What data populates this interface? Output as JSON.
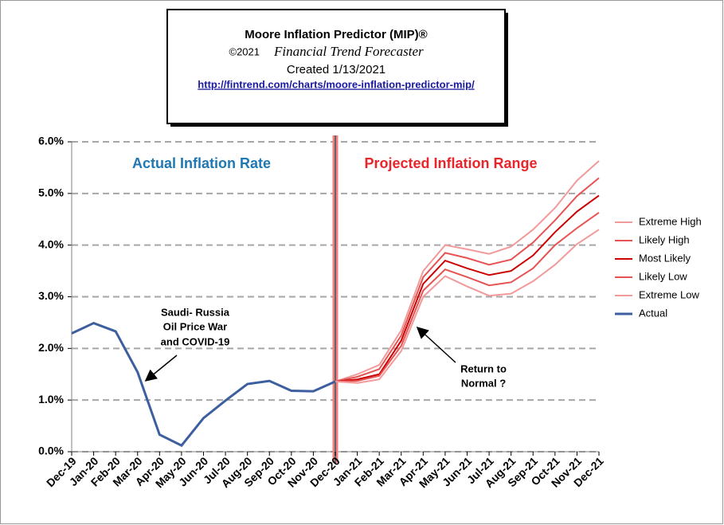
{
  "chart_data": {
    "type": "line",
    "title": "Moore Inflation Predictor (MIP)®",
    "subtitle_prefix": "©2021",
    "subtitle": "Financial Trend Forecaster",
    "created": "Created  1/13/2021",
    "link": "http://fintrend.com/charts/moore-inflation-predictor-mip/",
    "annotations": [
      {
        "lines": [
          "Actual Inflation Rate"
        ]
      },
      {
        "lines": [
          "Projected Inflation Range"
        ]
      },
      {
        "lines": [
          "Saudi- Russia",
          "Oil Price War",
          "and COVID-19"
        ]
      },
      {
        "lines": [
          "Return to",
          "Normal ?"
        ]
      }
    ],
    "categories": [
      "Dec-19",
      "Jan-20",
      "Feb-20",
      "Mar-20",
      "Apr-20",
      "May-20",
      "Jun-20",
      "Jul-20",
      "Aug-20",
      "Sep-20",
      "Oct-20",
      "Nov-20",
      "Dec-20",
      "Jan-21",
      "Feb-21",
      "Mar-21",
      "Apr-21",
      "May-21",
      "Jun-21",
      "Jul-21",
      "Aug-21",
      "Sep-21",
      "Oct-21",
      "Nov-21",
      "Dec-21"
    ],
    "series": [
      {
        "name": "Extreme High",
        "color": "#f29a9a",
        "values": [
          null,
          null,
          null,
          null,
          null,
          null,
          null,
          null,
          null,
          null,
          null,
          null,
          1.36,
          1.5,
          1.68,
          2.35,
          3.5,
          4.0,
          3.92,
          3.83,
          3.97,
          4.3,
          4.72,
          5.25,
          5.63
        ]
      },
      {
        "name": "Likely High",
        "color": "#e65353",
        "values": [
          null,
          null,
          null,
          null,
          null,
          null,
          null,
          null,
          null,
          null,
          null,
          null,
          1.36,
          1.45,
          1.6,
          2.25,
          3.38,
          3.85,
          3.75,
          3.62,
          3.72,
          4.05,
          4.48,
          4.95,
          5.3
        ]
      },
      {
        "name": "Most Likely",
        "color": "#cc0000",
        "values": [
          null,
          null,
          null,
          null,
          null,
          null,
          null,
          null,
          null,
          null,
          null,
          null,
          1.36,
          1.4,
          1.5,
          2.15,
          3.25,
          3.7,
          3.55,
          3.42,
          3.5,
          3.8,
          4.25,
          4.65,
          4.96
        ]
      },
      {
        "name": "Likely Low",
        "color": "#e65353",
        "values": [
          null,
          null,
          null,
          null,
          null,
          null,
          null,
          null,
          null,
          null,
          null,
          null,
          1.36,
          1.37,
          1.47,
          2.05,
          3.12,
          3.53,
          3.38,
          3.22,
          3.28,
          3.55,
          4.0,
          4.33,
          4.63
        ]
      },
      {
        "name": "Extreme Low",
        "color": "#f29a9a",
        "values": [
          null,
          null,
          null,
          null,
          null,
          null,
          null,
          null,
          null,
          null,
          null,
          null,
          1.36,
          1.33,
          1.4,
          1.95,
          3.0,
          3.4,
          3.2,
          3.02,
          3.06,
          3.3,
          3.62,
          4.02,
          4.3
        ]
      },
      {
        "name": "Actual",
        "color": "#3d5f9f",
        "values": [
          2.29,
          2.49,
          2.33,
          1.54,
          0.33,
          0.12,
          0.65,
          0.99,
          1.31,
          1.37,
          1.18,
          1.17,
          1.36,
          null,
          null,
          null,
          null,
          null,
          null,
          null,
          null,
          null,
          null,
          null,
          null
        ]
      }
    ],
    "ylim": [
      0,
      6
    ],
    "yticks": [
      {
        "value": 0,
        "label": "0.0%"
      },
      {
        "value": 1,
        "label": "1.0%"
      },
      {
        "value": 2,
        "label": "2.0%"
      },
      {
        "value": 3,
        "label": "3.0%"
      },
      {
        "value": 4,
        "label": "4.0%"
      },
      {
        "value": 5,
        "label": "5.0%"
      },
      {
        "value": 6,
        "label": "6.0%"
      }
    ],
    "grid": true,
    "legend": "right"
  }
}
